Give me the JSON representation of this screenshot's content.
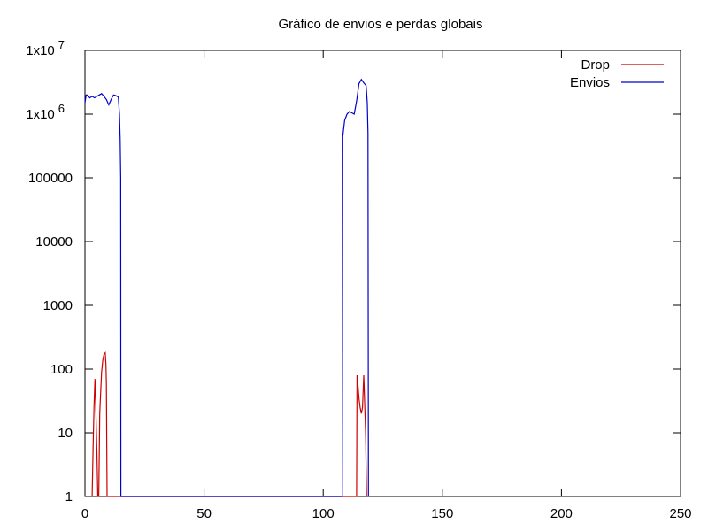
{
  "chart_data": {
    "type": "line",
    "title": "Gráfico de envios e perdas globais",
    "xlabel": "",
    "ylabel": "",
    "xlim": [
      0,
      250
    ],
    "ylim": [
      1,
      10000000
    ],
    "yscale": "log",
    "grid": false,
    "legend_position": "top-right",
    "x_ticks": [
      "0",
      "50",
      "100",
      "150",
      "200",
      "250"
    ],
    "y_ticks": [
      {
        "base": "1",
        "exp": ""
      },
      {
        "base": "10",
        "exp": ""
      },
      {
        "base": "100",
        "exp": ""
      },
      {
        "base": "1000",
        "exp": ""
      },
      {
        "base": "10000",
        "exp": ""
      },
      {
        "base": "100000",
        "exp": ""
      },
      {
        "base": "1x10",
        "exp": "6"
      },
      {
        "base": "1x10",
        "exp": "7"
      }
    ],
    "series": [
      {
        "name": "Drop",
        "color": "#cc0000",
        "points": [
          [
            3,
            1
          ],
          [
            3.4,
            6
          ],
          [
            3.8,
            25
          ],
          [
            4.2,
            70
          ],
          [
            4.6,
            20
          ],
          [
            5.0,
            5
          ],
          [
            5.4,
            1
          ],
          [
            5.8,
            1
          ],
          [
            6.2,
            20
          ],
          [
            6.6,
            45
          ],
          [
            7.0,
            90
          ],
          [
            7.5,
            140
          ],
          [
            8.0,
            170
          ],
          [
            8.5,
            180
          ],
          [
            8.8,
            120
          ],
          [
            9.0,
            60
          ],
          [
            9.3,
            1
          ],
          [
            114,
            1
          ],
          [
            114.2,
            80
          ],
          [
            114.6,
            55
          ],
          [
            115.0,
            35
          ],
          [
            115.5,
            25
          ],
          [
            116.0,
            20
          ],
          [
            116.5,
            25
          ],
          [
            117.0,
            80
          ],
          [
            117.4,
            30
          ],
          [
            117.8,
            10
          ],
          [
            118.2,
            1
          ]
        ]
      },
      {
        "name": "Envios",
        "color": "#0000cc",
        "points": [
          [
            0,
            1500000
          ],
          [
            0.5,
            2000000
          ],
          [
            1,
            2000000
          ],
          [
            2,
            1800000
          ],
          [
            3,
            1900000
          ],
          [
            4,
            1800000
          ],
          [
            5,
            1900000
          ],
          [
            6,
            2000000
          ],
          [
            7,
            2100000
          ],
          [
            8,
            1900000
          ],
          [
            9,
            1700000
          ],
          [
            10,
            1400000
          ],
          [
            11,
            1700000
          ],
          [
            12,
            2000000
          ],
          [
            13,
            1950000
          ],
          [
            14,
            1850000
          ],
          [
            14.5,
            1000000
          ],
          [
            14.8,
            400000
          ],
          [
            15.0,
            100000
          ],
          [
            15.1,
            1
          ],
          [
            108,
            1
          ],
          [
            108.2,
            450000
          ],
          [
            109,
            800000
          ],
          [
            110,
            1000000
          ],
          [
            111,
            1100000
          ],
          [
            112,
            1050000
          ],
          [
            113,
            1000000
          ],
          [
            114,
            1600000
          ],
          [
            115,
            3000000
          ],
          [
            116,
            3500000
          ],
          [
            117,
            3100000
          ],
          [
            118,
            2800000
          ],
          [
            118.5,
            1500000
          ],
          [
            118.8,
            500000
          ],
          [
            119.0,
            1
          ]
        ]
      }
    ]
  }
}
